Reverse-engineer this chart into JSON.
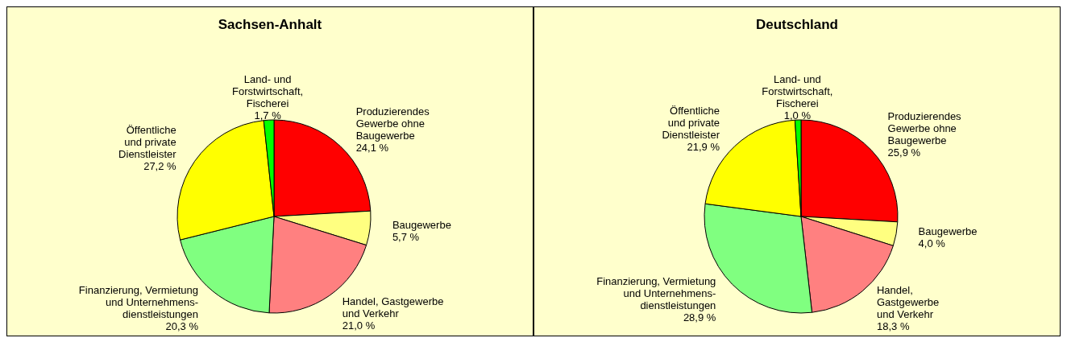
{
  "chart_data": [
    {
      "type": "pie",
      "title": "Sachsen-Anhalt",
      "categories": [
        "Produzierendes\nGewerbe ohne\nBaugewerbe",
        "Baugewerbe",
        "Handel, Gastgewerbe\nund Verkehr",
        "Finanzierung, Vermietung\nund Unternehmens-\ndienstleistungen",
        "Öffentliche\nund private\nDienstleister",
        "Land- und\nForstwirtschaft,\nFischerei"
      ],
      "values": [
        24.1,
        5.7,
        21.0,
        20.3,
        27.2,
        1.7
      ],
      "value_labels": [
        "24,1 %",
        "5,7 %",
        "21,0 %",
        "20,3 %",
        "27,2 %",
        "1,7 %"
      ],
      "colors": [
        "#ff0000",
        "#ffff80",
        "#ff8080",
        "#80ff80",
        "#ffff00",
        "#00ff00"
      ]
    },
    {
      "type": "pie",
      "title": "Deutschland",
      "categories": [
        "Produzierendes\nGewerbe ohne\nBaugewerbe",
        "Baugewerbe",
        "Handel,\nGastgewerbe\nund Verkehr",
        "Finanzierung, Vermietung\nund Unternehmens-\ndienstleistungen",
        "Öffentliche\nund private\nDienstleister",
        "Land- und\nForstwirtschaft,\nFischerei"
      ],
      "values": [
        25.9,
        4.0,
        18.3,
        28.9,
        21.9,
        1.0
      ],
      "value_labels": [
        "25,9 %",
        "4,0 %",
        "18,3 %",
        "28,9 %",
        "21,9 %",
        "1,0 %"
      ],
      "colors": [
        "#ff0000",
        "#ffff80",
        "#ff8080",
        "#80ff80",
        "#ffff00",
        "#00ff00"
      ]
    }
  ]
}
